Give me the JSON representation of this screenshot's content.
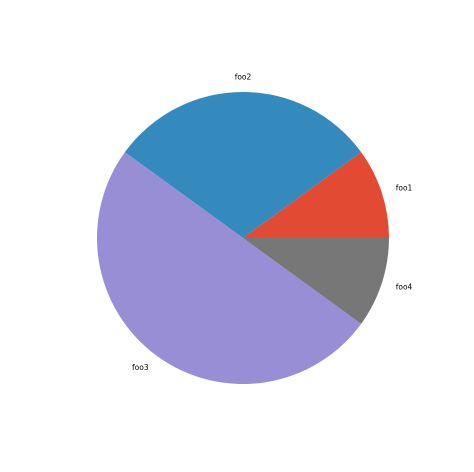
{
  "chart_data": {
    "type": "pie",
    "labels": [
      "foo1",
      "foo2",
      "foo3",
      "foo4"
    ],
    "values": [
      10,
      30,
      50,
      10
    ],
    "colors": [
      "#E24A33",
      "#348ABD",
      "#988ED5",
      "#777777"
    ],
    "start_angle": 0,
    "direction": "counterclockwise"
  }
}
